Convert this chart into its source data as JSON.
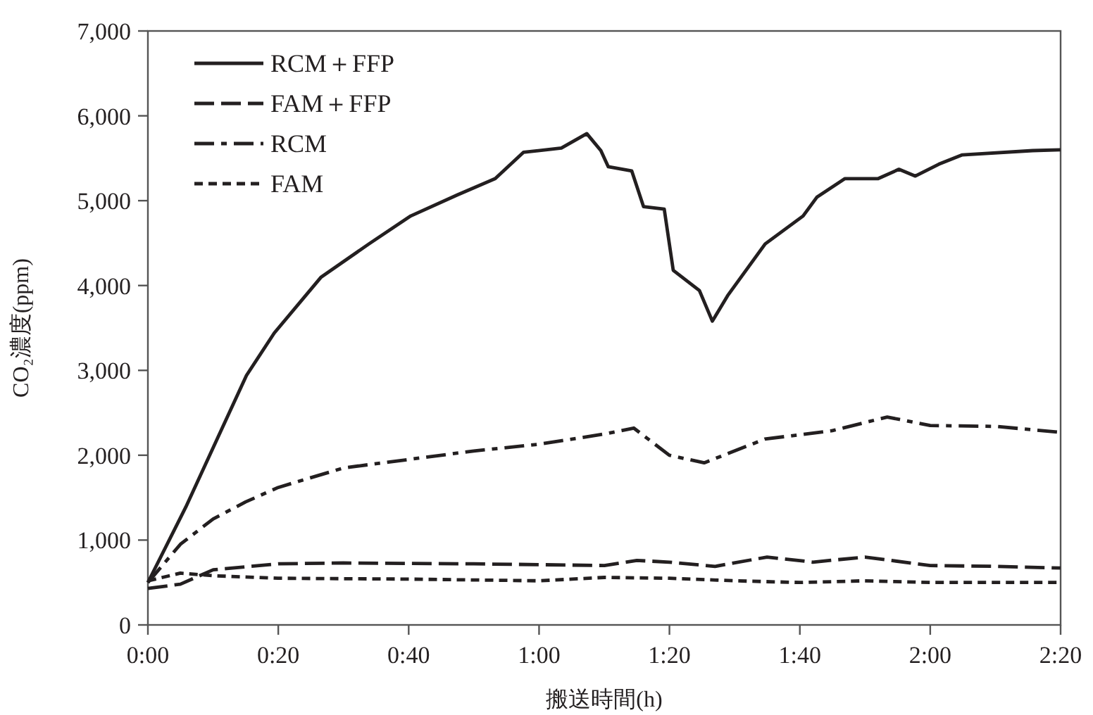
{
  "chart_data": {
    "type": "line",
    "xlabel": "搬送時間(h)",
    "ylabel": "CO₂濃度(ppm)",
    "legend": "top left",
    "grid": false,
    "xlim": [
      0,
      2.3333
    ],
    "ylim": [
      0,
      7000
    ],
    "xticks": [
      {
        "value": 0,
        "label": "0:00"
      },
      {
        "value": 0.3333,
        "label": "0:20"
      },
      {
        "value": 0.6667,
        "label": "0:40"
      },
      {
        "value": 1,
        "label": "1:00"
      },
      {
        "value": 1.3333,
        "label": "1:20"
      },
      {
        "value": 1.6667,
        "label": "1:40"
      },
      {
        "value": 2,
        "label": "2:00"
      },
      {
        "value": 2.3333,
        "label": "2:20"
      }
    ],
    "yticks": [
      0,
      {
        "value": 1000,
        "label": "1,000"
      },
      {
        "value": 2000,
        "label": "2,000"
      },
      {
        "value": 3000,
        "label": "3,000"
      },
      {
        "value": 4000,
        "label": "4,000"
      },
      {
        "value": 5000,
        "label": "5,000"
      },
      {
        "value": 6000,
        "label": "6,000"
      },
      {
        "value": 7000,
        "label": "7,000"
      }
    ],
    "series": [
      {
        "name": "RCM＋FFP",
        "color": "#231f20",
        "line_style": "solid",
        "x": [
          0,
          0.097,
          0.18,
          0.252,
          0.323,
          0.443,
          0.565,
          0.672,
          0.792,
          0.888,
          0.96,
          1.057,
          1.122,
          1.158,
          1.177,
          1.237,
          1.267,
          1.32,
          1.343,
          1.41,
          1.443,
          1.482,
          1.578,
          1.675,
          1.71,
          1.782,
          1.867,
          1.92,
          1.962,
          2.022,
          2.082,
          2.262,
          2.333
        ],
        "values": [
          500,
          1390,
          2220,
          2940,
          3440,
          4100,
          4490,
          4820,
          5070,
          5260,
          5570,
          5620,
          5790,
          5590,
          5400,
          5350,
          4930,
          4900,
          4180,
          3940,
          3580,
          3880,
          4490,
          4820,
          5040,
          5260,
          5260,
          5370,
          5290,
          5430,
          5540,
          5590,
          5600
        ]
      },
      {
        "name": "FAM＋FFP",
        "color": "#231f20",
        "line_style": "dashed",
        "x": [
          0,
          0.083,
          0.167,
          0.333,
          0.5,
          0.833,
          1.0,
          1.167,
          1.25,
          1.333,
          1.45,
          1.583,
          1.7,
          1.833,
          2.0,
          2.167,
          2.333
        ],
        "values": [
          430,
          480,
          650,
          720,
          730,
          720,
          710,
          700,
          760,
          740,
          690,
          800,
          740,
          800,
          700,
          690,
          670
        ]
      },
      {
        "name": "RCM",
        "color": "#231f20",
        "line_style": "dashdot",
        "x": [
          0,
          0.083,
          0.167,
          0.25,
          0.333,
          0.5,
          0.667,
          0.833,
          1.0,
          1.167,
          1.242,
          1.333,
          1.422,
          1.577,
          1.75,
          1.89,
          2.0,
          2.167,
          2.333
        ],
        "values": [
          500,
          950,
          1250,
          1450,
          1620,
          1850,
          1950,
          2050,
          2130,
          2250,
          2320,
          2000,
          1910,
          2190,
          2290,
          2450,
          2350,
          2340,
          2270
        ]
      },
      {
        "name": "FAM",
        "color": "#231f20",
        "line_style": "dotted",
        "x": [
          0,
          0.083,
          0.167,
          0.333,
          0.667,
          1.0,
          1.167,
          1.333,
          1.5,
          1.667,
          1.833,
          2.0,
          2.333
        ],
        "values": [
          520,
          610,
          580,
          550,
          540,
          520,
          560,
          550,
          520,
          500,
          520,
          500,
          500
        ]
      }
    ]
  }
}
